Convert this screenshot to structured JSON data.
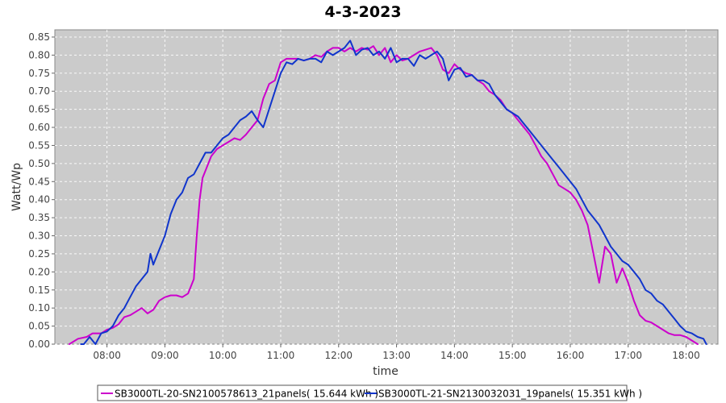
{
  "chart_data": {
    "type": "line",
    "title": "4-3-2023",
    "xlabel": "time",
    "ylabel": "Watt/Wp",
    "x_unit": "hour of day",
    "xlim": [
      7.1,
      18.55
    ],
    "ylim": [
      0,
      0.87
    ],
    "xticks": [
      8,
      9,
      10,
      11,
      12,
      13,
      14,
      15,
      16,
      17,
      18
    ],
    "xtick_labels": [
      "08:00",
      "09:00",
      "10:00",
      "11:00",
      "12:00",
      "13:00",
      "14:00",
      "15:00",
      "16:00",
      "17:00",
      "18:00"
    ],
    "yticks": [
      0,
      0.05,
      0.1,
      0.15,
      0.2,
      0.25,
      0.3,
      0.35,
      0.4,
      0.45,
      0.5,
      0.55,
      0.6,
      0.65,
      0.7,
      0.75,
      0.8,
      0.85
    ],
    "ytick_labels": [
      "0.00",
      "0.05",
      "0.10",
      "0.15",
      "0.20",
      "0.25",
      "0.30",
      "0.35",
      "0.40",
      "0.45",
      "0.50",
      "0.55",
      "0.60",
      "0.65",
      "0.70",
      "0.75",
      "0.80",
      "0.85"
    ],
    "grid": true,
    "legend_position": "bottom",
    "series": [
      {
        "name": "SB3000TL-20-SN2100578613_21panels( 15.644 kWh )",
        "color": "#cc00cc",
        "x": [
          7.35,
          7.5,
          7.65,
          7.75,
          7.9,
          8.0,
          8.1,
          8.2,
          8.3,
          8.4,
          8.5,
          8.6,
          8.7,
          8.8,
          8.9,
          9.0,
          9.1,
          9.2,
          9.3,
          9.4,
          9.5,
          9.55,
          9.6,
          9.65,
          9.7,
          9.8,
          9.9,
          10.0,
          10.1,
          10.2,
          10.3,
          10.4,
          10.5,
          10.6,
          10.7,
          10.8,
          10.9,
          11.0,
          11.1,
          11.2,
          11.3,
          11.4,
          11.5,
          11.6,
          11.7,
          11.8,
          11.9,
          12.0,
          12.1,
          12.2,
          12.3,
          12.4,
          12.5,
          12.6,
          12.7,
          12.8,
          12.9,
          13.0,
          13.1,
          13.2,
          13.3,
          13.4,
          13.5,
          13.6,
          13.7,
          13.8,
          13.9,
          14.0,
          14.1,
          14.2,
          14.3,
          14.4,
          14.5,
          14.6,
          14.7,
          14.8,
          14.9,
          15.0,
          15.1,
          15.2,
          15.3,
          15.4,
          15.5,
          15.6,
          15.7,
          15.8,
          15.9,
          16.0,
          16.1,
          16.2,
          16.3,
          16.4,
          16.5,
          16.6,
          16.7,
          16.8,
          16.9,
          17.0,
          17.1,
          17.2,
          17.3,
          17.4,
          17.5,
          17.6,
          17.7,
          17.8,
          17.9,
          18.0,
          18.1,
          18.2
        ],
        "y": [
          0.0,
          0.015,
          0.02,
          0.03,
          0.03,
          0.04,
          0.045,
          0.055,
          0.075,
          0.08,
          0.09,
          0.1,
          0.085,
          0.095,
          0.12,
          0.13,
          0.135,
          0.135,
          0.13,
          0.14,
          0.18,
          0.3,
          0.4,
          0.46,
          0.48,
          0.52,
          0.54,
          0.55,
          0.56,
          0.57,
          0.565,
          0.58,
          0.6,
          0.62,
          0.68,
          0.72,
          0.73,
          0.78,
          0.79,
          0.79,
          0.79,
          0.785,
          0.79,
          0.8,
          0.795,
          0.81,
          0.82,
          0.82,
          0.81,
          0.82,
          0.81,
          0.82,
          0.815,
          0.825,
          0.8,
          0.82,
          0.78,
          0.8,
          0.785,
          0.79,
          0.8,
          0.81,
          0.815,
          0.82,
          0.8,
          0.76,
          0.75,
          0.775,
          0.76,
          0.75,
          0.745,
          0.73,
          0.72,
          0.7,
          0.69,
          0.675,
          0.65,
          0.64,
          0.62,
          0.6,
          0.58,
          0.55,
          0.52,
          0.5,
          0.47,
          0.44,
          0.43,
          0.42,
          0.4,
          0.37,
          0.33,
          0.25,
          0.17,
          0.27,
          0.25,
          0.17,
          0.21,
          0.17,
          0.12,
          0.08,
          0.065,
          0.06,
          0.05,
          0.04,
          0.03,
          0.025,
          0.025,
          0.02,
          0.01,
          0.0
        ]
      },
      {
        "name": "SB3000TL-21-SN2130032031_19panels( 15.351 kWh )",
        "color": "#1035cc",
        "x": [
          7.55,
          7.6,
          7.7,
          7.8,
          7.9,
          8.0,
          8.1,
          8.2,
          8.3,
          8.4,
          8.5,
          8.6,
          8.7,
          8.75,
          8.8,
          8.9,
          9.0,
          9.1,
          9.2,
          9.3,
          9.4,
          9.5,
          9.6,
          9.7,
          9.8,
          9.9,
          10.0,
          10.1,
          10.2,
          10.3,
          10.4,
          10.5,
          10.6,
          10.7,
          10.8,
          10.9,
          11.0,
          11.1,
          11.2,
          11.3,
          11.4,
          11.5,
          11.6,
          11.7,
          11.8,
          11.9,
          12.0,
          12.1,
          12.2,
          12.3,
          12.4,
          12.5,
          12.6,
          12.7,
          12.8,
          12.9,
          13.0,
          13.1,
          13.2,
          13.3,
          13.4,
          13.5,
          13.6,
          13.7,
          13.8,
          13.9,
          14.0,
          14.1,
          14.2,
          14.3,
          14.4,
          14.5,
          14.6,
          14.7,
          14.8,
          14.9,
          15.0,
          15.1,
          15.2,
          15.3,
          15.4,
          15.5,
          15.6,
          15.7,
          15.8,
          15.9,
          16.0,
          16.1,
          16.2,
          16.3,
          16.4,
          16.5,
          16.6,
          16.7,
          16.8,
          16.9,
          17.0,
          17.1,
          17.2,
          17.3,
          17.4,
          17.5,
          17.6,
          17.7,
          17.8,
          17.9,
          18.0,
          18.1,
          18.2,
          18.3,
          18.35
        ],
        "y": [
          0.0,
          0.0,
          0.02,
          0.0,
          0.03,
          0.035,
          0.05,
          0.08,
          0.1,
          0.13,
          0.16,
          0.18,
          0.2,
          0.25,
          0.22,
          0.26,
          0.3,
          0.36,
          0.4,
          0.42,
          0.46,
          0.47,
          0.5,
          0.53,
          0.53,
          0.55,
          0.57,
          0.58,
          0.6,
          0.62,
          0.63,
          0.645,
          0.62,
          0.6,
          0.65,
          0.7,
          0.75,
          0.78,
          0.775,
          0.79,
          0.785,
          0.79,
          0.79,
          0.78,
          0.81,
          0.8,
          0.81,
          0.82,
          0.84,
          0.8,
          0.815,
          0.82,
          0.8,
          0.81,
          0.79,
          0.82,
          0.78,
          0.79,
          0.79,
          0.77,
          0.8,
          0.79,
          0.8,
          0.81,
          0.79,
          0.73,
          0.76,
          0.765,
          0.74,
          0.745,
          0.73,
          0.73,
          0.72,
          0.69,
          0.67,
          0.65,
          0.64,
          0.63,
          0.61,
          0.59,
          0.57,
          0.55,
          0.53,
          0.51,
          0.49,
          0.47,
          0.45,
          0.43,
          0.4,
          0.37,
          0.35,
          0.33,
          0.3,
          0.27,
          0.25,
          0.23,
          0.22,
          0.2,
          0.18,
          0.15,
          0.14,
          0.12,
          0.11,
          0.09,
          0.07,
          0.05,
          0.035,
          0.03,
          0.02,
          0.015,
          0.0
        ]
      }
    ]
  }
}
